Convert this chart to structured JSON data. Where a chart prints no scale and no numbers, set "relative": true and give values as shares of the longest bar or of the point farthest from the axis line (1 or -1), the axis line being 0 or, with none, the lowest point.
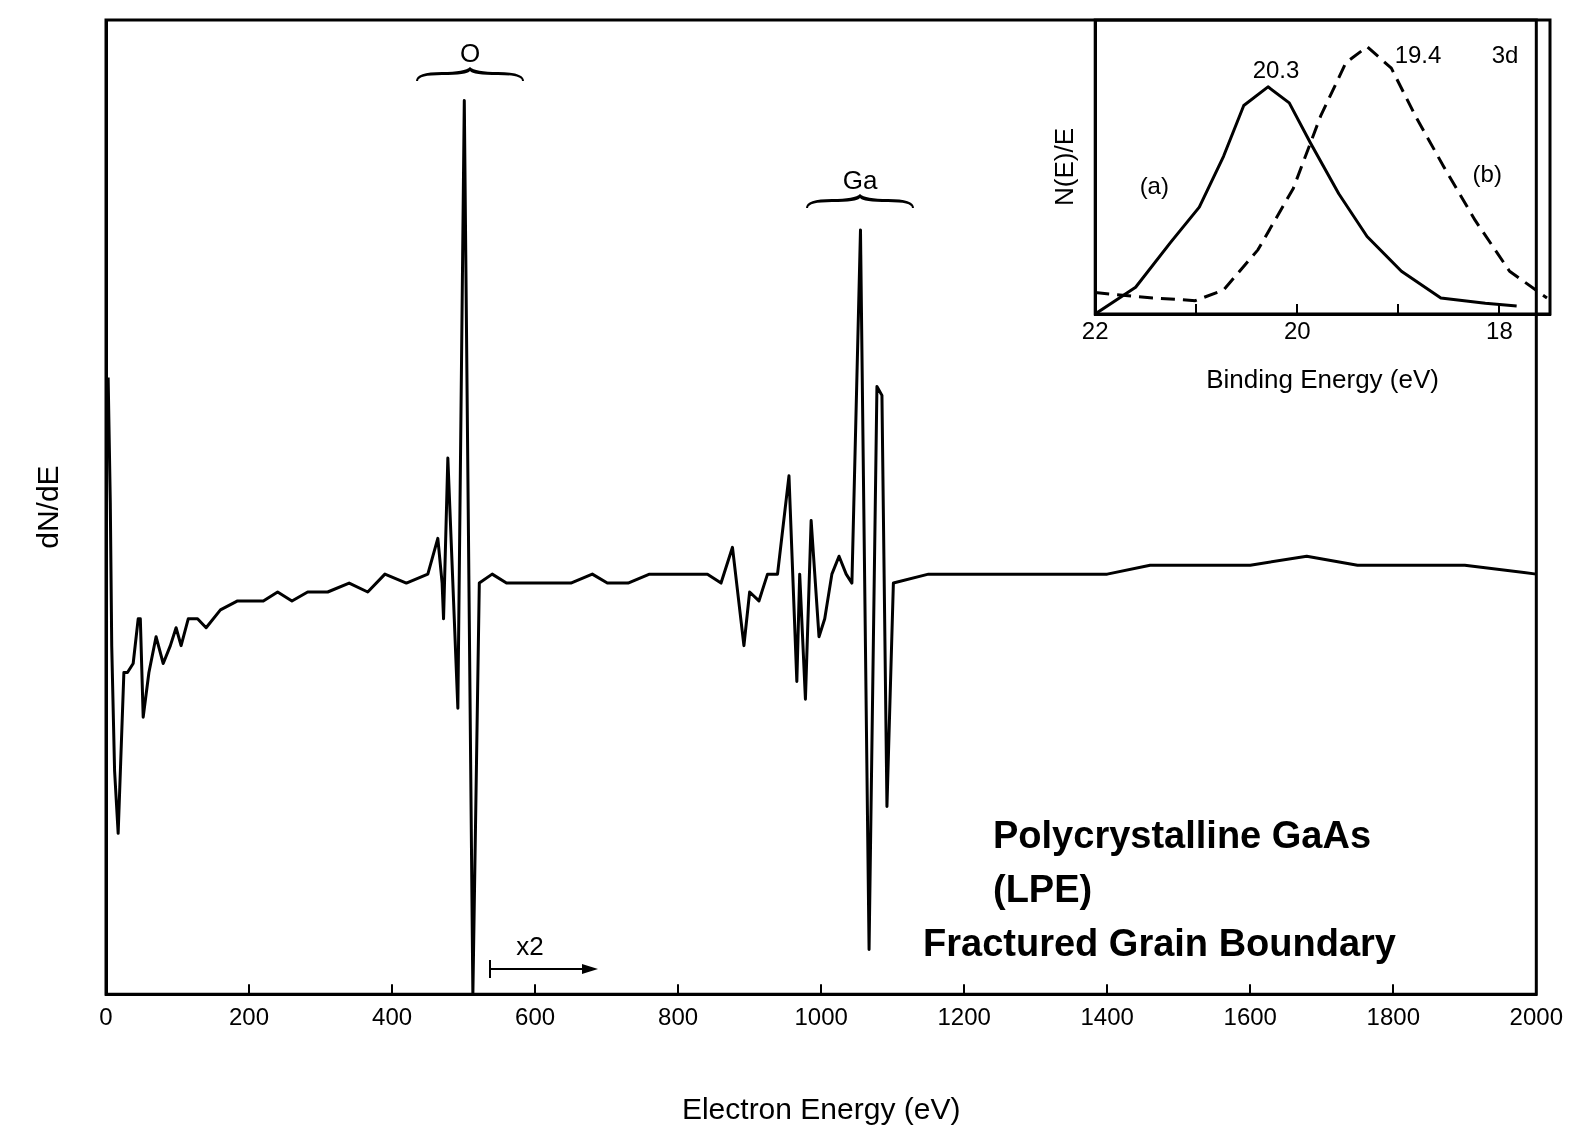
{
  "chart_data": [
    {
      "type": "line",
      "xlabel": "Electron Energy (eV)",
      "ylabel": "dN/dE",
      "relative": true,
      "xlim": [
        0,
        2000
      ],
      "xticks": [
        0,
        200,
        400,
        600,
        800,
        1000,
        1200,
        1400,
        1600,
        1800,
        2000
      ],
      "grid": false,
      "legend": false,
      "marker": "none",
      "line_style": "solid",
      "x": [
        3,
        6,
        8,
        12,
        17,
        25,
        30,
        38,
        45,
        48,
        52,
        60,
        70,
        80,
        90,
        98,
        105,
        115,
        128,
        140,
        160,
        184,
        220,
        240,
        260,
        282,
        310,
        340,
        366,
        390,
        420,
        450,
        464,
        470,
        472,
        478,
        492,
        501,
        513,
        522,
        540,
        560,
        589,
        620,
        650,
        680,
        701,
        730,
        760,
        800,
        841,
        860,
        876,
        892,
        900,
        913,
        925,
        939,
        955,
        966,
        970,
        978,
        986,
        997,
        1005,
        1015,
        1025,
        1035,
        1043,
        1055,
        1067,
        1078,
        1085,
        1092,
        1101,
        1150,
        1200,
        1260,
        1320,
        1400,
        1460,
        1539,
        1600,
        1679,
        1750,
        1818,
        1900,
        2000
      ],
      "series": [
        {
          "color": "#000000",
          "values": [
            0.69,
            0.55,
            0.39,
            0.25,
            0.18,
            0.36,
            0.36,
            0.37,
            0.42,
            0.42,
            0.31,
            0.36,
            0.4,
            0.37,
            0.39,
            0.41,
            0.39,
            0.42,
            0.42,
            0.41,
            0.43,
            0.44,
            0.44,
            0.45,
            0.44,
            0.45,
            0.45,
            0.46,
            0.45,
            0.47,
            0.46,
            0.47,
            0.51,
            0.46,
            0.42,
            0.6,
            0.32,
            1.0,
            0.0,
            0.46,
            0.47,
            0.46,
            0.46,
            0.46,
            0.46,
            0.47,
            0.46,
            0.46,
            0.47,
            0.47,
            0.47,
            0.46,
            0.5,
            0.39,
            0.45,
            0.44,
            0.47,
            0.47,
            0.58,
            0.35,
            0.47,
            0.33,
            0.53,
            0.4,
            0.42,
            0.47,
            0.49,
            0.47,
            0.46,
            0.855,
            0.05,
            0.68,
            0.67,
            0.21,
            0.46,
            0.47,
            0.47,
            0.47,
            0.47,
            0.47,
            0.48,
            0.48,
            0.48,
            0.49,
            0.48,
            0.48,
            0.48,
            0.47
          ]
        }
      ],
      "annotations": [
        "O",
        "Ga",
        "x2",
        "Polycrystalline GaAs",
        "(LPE)",
        "Fractured Grain Boundary"
      ]
    },
    {
      "type": "line",
      "xlabel": "Binding Energy (eV)",
      "ylabel": "N(E)/E",
      "relative": true,
      "xlim": [
        22,
        17.5
      ],
      "xticks": [
        22,
        {
          "value": 21,
          "label": null
        },
        20,
        {
          "value": 19,
          "label": null
        },
        18
      ],
      "grid": false,
      "legend": false,
      "marker": "none",
      "series": [
        {
          "name": "(a)",
          "color": "#000000",
          "line_style": "solid",
          "x": [
            22.0,
            21.6,
            21.25,
            20.97,
            20.73,
            20.53,
            20.29,
            20.08,
            19.87,
            19.59,
            19.31,
            18.97,
            18.58,
            18.14,
            17.83
          ],
          "values": [
            0.0,
            0.1,
            0.27,
            0.4,
            0.59,
            0.78,
            0.85,
            0.79,
            0.64,
            0.45,
            0.29,
            0.16,
            0.06,
            0.04,
            0.03
          ]
        },
        {
          "name": "(b)",
          "color": "#000000",
          "line_style": "dashed",
          "x": [
            22.0,
            21.43,
            21.01,
            20.73,
            20.39,
            20.04,
            19.77,
            19.52,
            19.31,
            19.07,
            18.83,
            18.55,
            18.24,
            17.9,
            17.53
          ],
          "values": [
            0.08,
            0.06,
            0.05,
            0.09,
            0.24,
            0.47,
            0.74,
            0.94,
            1.0,
            0.92,
            0.74,
            0.55,
            0.35,
            0.16,
            0.06
          ]
        }
      ],
      "annotations": [
        "20.3",
        "19.4",
        "3d"
      ]
    }
  ]
}
